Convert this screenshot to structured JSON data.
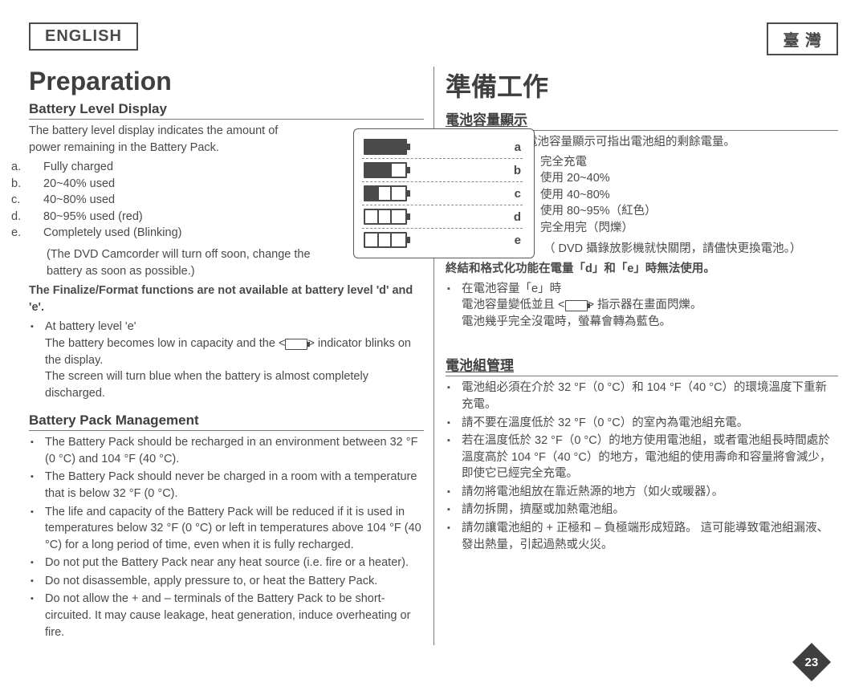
{
  "lang": {
    "left": "ENGLISH",
    "right": "臺 灣"
  },
  "title": {
    "en": "Preparation",
    "zh": "準備工作"
  },
  "left": {
    "h_battery": "Battery Level Display",
    "intro": "The battery level display indicates the amount of power remaining in the Battery Pack.",
    "levels": {
      "a": "Fully charged",
      "b": "20~40% used",
      "c": "40~80% used",
      "d": "80~95% used (red)",
      "e": "Completely used (Blinking)"
    },
    "note_e": "(The DVD Camcorder will turn off soon, change the battery as soon as possible.)",
    "warn": "The Finalize/Format functions are not available at battery level 'd' and 'e'.",
    "at_e_head": "At battery level 'e'",
    "at_e_1": "The battery becomes low in capacity and the <",
    "at_e_1b": "> indicator blinks on the display.",
    "at_e_2": "The screen will turn blue when the battery is almost completely discharged.",
    "h_mgmt": "Battery Pack Management",
    "mgmt": [
      "The Battery Pack should be recharged in an environment between 32 °F (0 °C) and 104 °F (40 °C).",
      "The Battery Pack should never be charged in a room with a temperature that is below 32 °F (0 °C).",
      "The life and capacity of the Battery Pack will be reduced if it is used in temperatures below 32 °F (0 °C) or left in temperatures above 104 °F (40 °C) for a long period of time, even when it is fully recharged.",
      "Do not put the Battery Pack near any heat source (i.e. fire or a heater).",
      "Do not disassemble, apply pressure to, or heat the Battery Pack.",
      "Do not allow the + and – terminals of the Battery Pack to be short-circuited. It may cause leakage, heat generation, induce overheating or fire."
    ]
  },
  "right": {
    "h_battery": "電池容量顯示",
    "intro": "電池容量顯示可指出電池組的剩餘電量。",
    "levels": {
      "a": "完全充電",
      "b": "使用 20~40%",
      "c": "使用 40~80%",
      "d": "使用 80~95%（紅色）",
      "e": "完全用完（閃爍）"
    },
    "note_e": "（ DVD 攝錄放影機就快關閉，請儘快更換電池。）",
    "warn": "終結和格式化功能在電量「d」和「e」時無法使用。",
    "at_e_head": "在電池容量「e」時",
    "at_e_1": "電池容量變低並且 <",
    "at_e_1b": "> 指示器在畫面閃爍。",
    "at_e_2": "電池幾乎完全沒電時，螢幕會轉為藍色。",
    "h_mgmt": "電池組管理",
    "mgmt": [
      "電池組必須在介於 32 °F（0 °C）和 104 °F（40 °C）的環境溫度下重新充電。",
      "請不要在溫度低於 32 °F（0 °C）的室內為電池組充電。",
      "若在溫度低於 32 °F（0 °C）的地方使用電池組，或者電池組長時間處於溫度高於 104 °F（40 °C）的地方，電池組的使用壽命和容量將會減少，即使它已經完全充電。",
      "請勿將電池組放在靠近熱源的地方（如火或暖器）。",
      "請勿拆開，擠壓或加熱電池組。",
      "請勿讓電池組的 + 正極和 – 負極端形成短路。 這可能導致電池組漏液、發出熱量，引起過熱或火災。"
    ]
  },
  "diagram": {
    "labels": [
      "a",
      "b",
      "c",
      "d",
      "e"
    ],
    "fills": [
      [
        1,
        1,
        1
      ],
      [
        1,
        1,
        0
      ],
      [
        1,
        0,
        0
      ],
      [
        0,
        0,
        0
      ],
      [
        0,
        0,
        0
      ]
    ],
    "colors": {
      "border": "#4a4a4a",
      "fill": "#4a4a4a",
      "dash": "#8a8a8a"
    }
  },
  "page_number": "23"
}
